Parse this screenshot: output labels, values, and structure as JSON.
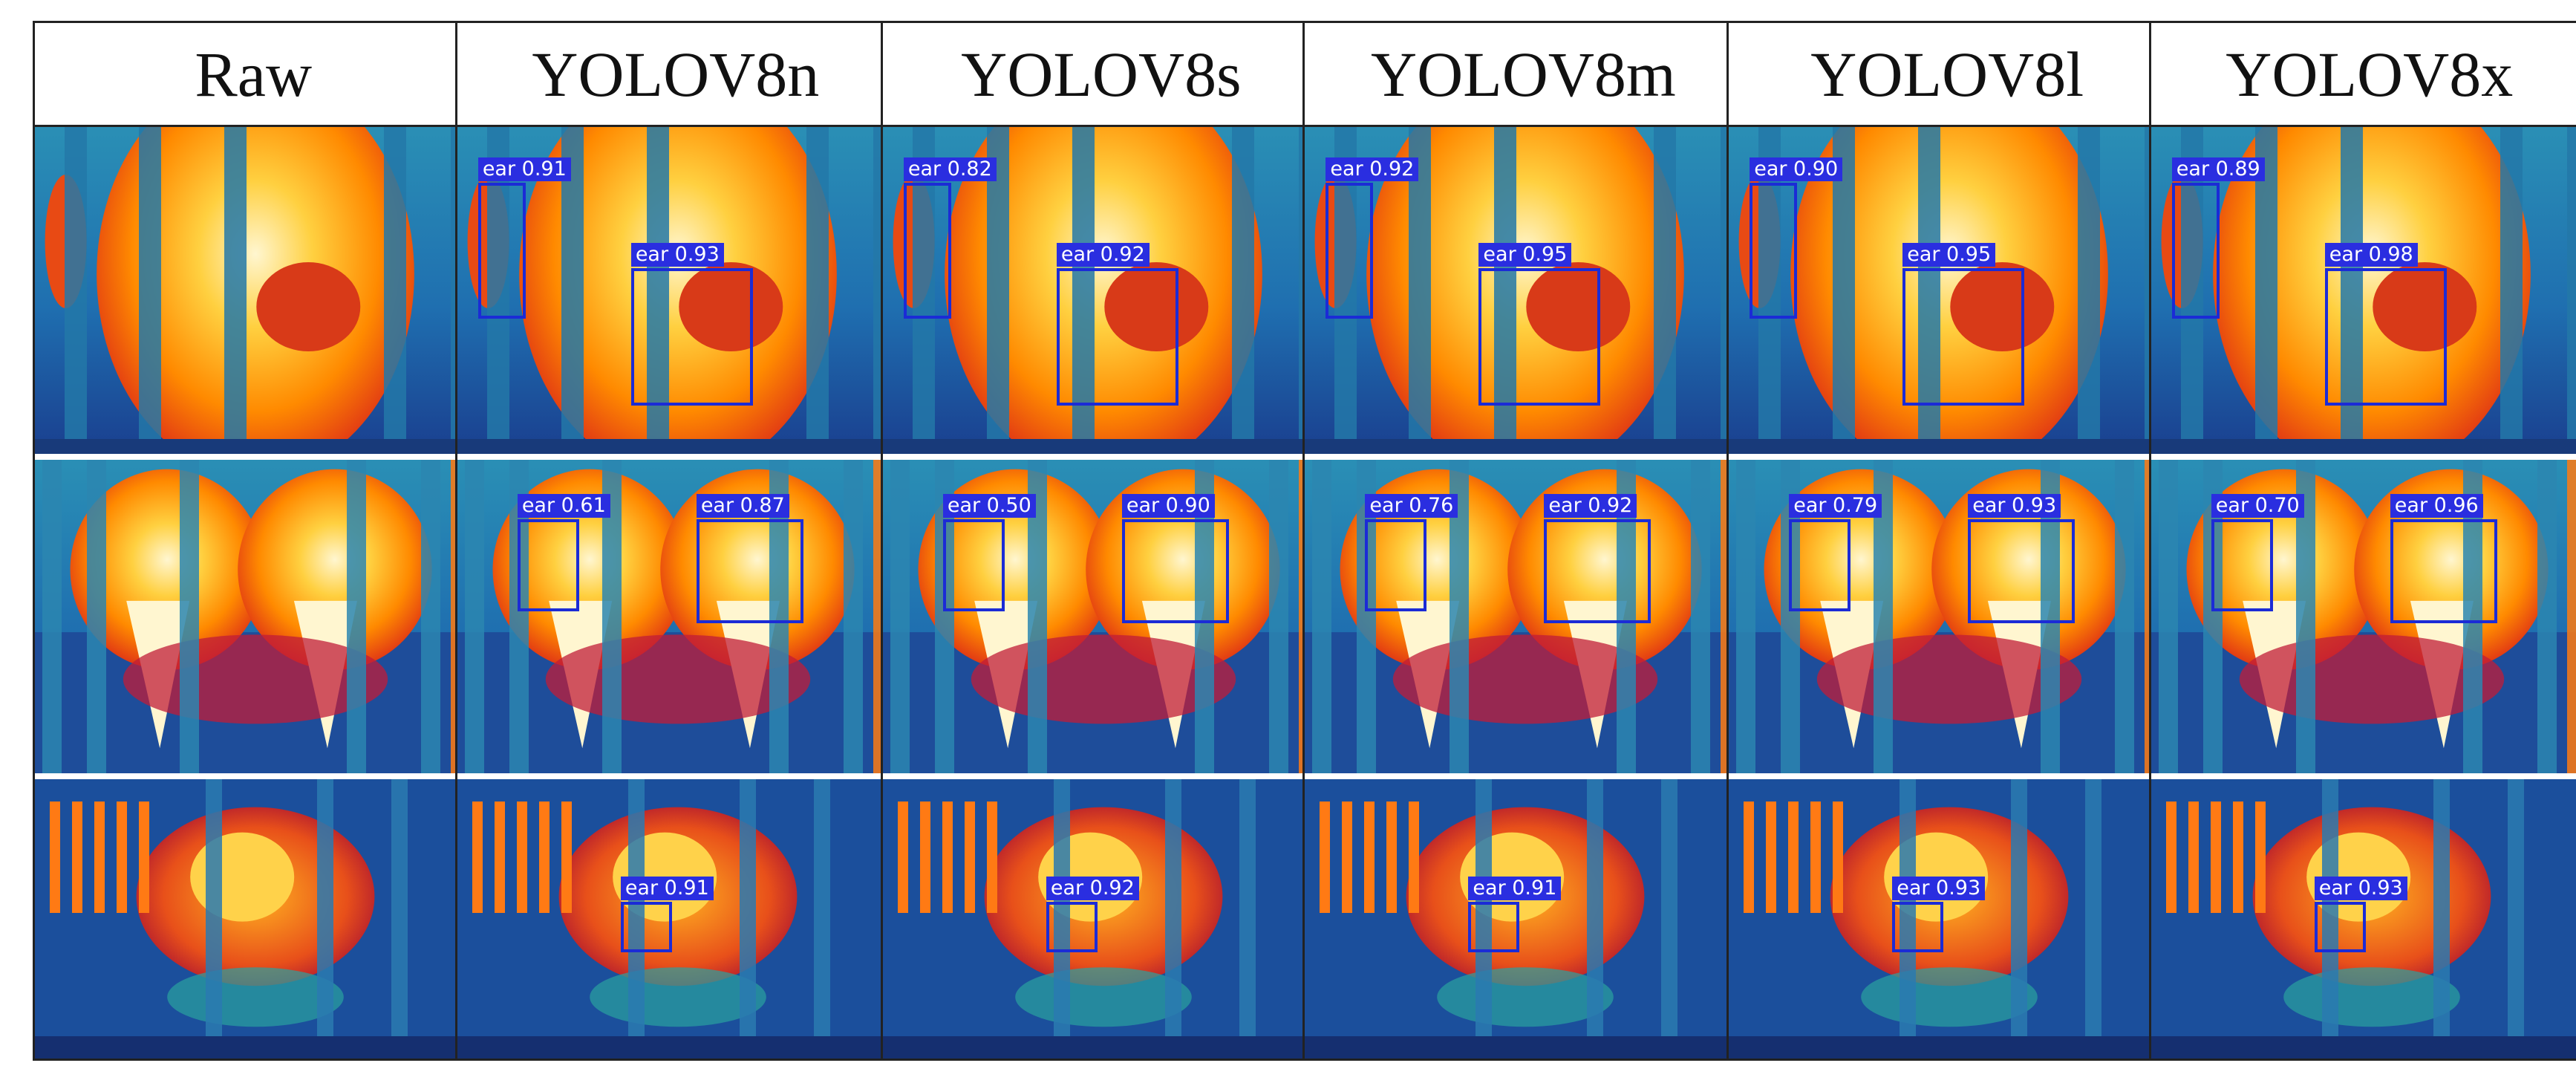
{
  "figure": {
    "columns": [
      {
        "title": "Raw",
        "rows": [
          {
            "detections": []
          },
          {
            "detections": []
          },
          {
            "detections": []
          }
        ]
      },
      {
        "title": "YOLOV8n",
        "rows": [
          {
            "detections": [
              {
                "label": "ear 0.91"
              },
              {
                "label": "ear 0.93"
              }
            ]
          },
          {
            "detections": [
              {
                "label": "ear 0.61"
              },
              {
                "label": "ear 0.87"
              }
            ]
          },
          {
            "detections": [
              {
                "label": "ear 0.91"
              }
            ]
          }
        ]
      },
      {
        "title": "YOLOV8s",
        "rows": [
          {
            "detections": [
              {
                "label": "ear 0.82"
              },
              {
                "label": "ear 0.92"
              }
            ]
          },
          {
            "detections": [
              {
                "label": "ear 0.50"
              },
              {
                "label": "ear 0.90"
              }
            ]
          },
          {
            "detections": [
              {
                "label": "ear 0.92"
              }
            ]
          }
        ]
      },
      {
        "title": "YOLOV8m",
        "rows": [
          {
            "detections": [
              {
                "label": "ear 0.92"
              },
              {
                "label": "ear 0.95"
              }
            ]
          },
          {
            "detections": [
              {
                "label": "ear 0.76"
              },
              {
                "label": "ear 0.92"
              }
            ]
          },
          {
            "detections": [
              {
                "label": "ear 0.91"
              }
            ]
          }
        ]
      },
      {
        "title": "YOLOV8l",
        "rows": [
          {
            "detections": [
              {
                "label": "ear 0.90"
              },
              {
                "label": "ear 0.95"
              }
            ]
          },
          {
            "detections": [
              {
                "label": "ear 0.79"
              },
              {
                "label": "ear 0.93"
              }
            ]
          },
          {
            "detections": [
              {
                "label": "ear 0.93"
              }
            ]
          }
        ]
      },
      {
        "title": "YOLOV8x",
        "rows": [
          {
            "detections": [
              {
                "label": "ear 0.89"
              },
              {
                "label": "ear 0.98"
              }
            ]
          },
          {
            "detections": [
              {
                "label": "ear 0.70"
              },
              {
                "label": "ear 0.96"
              }
            ]
          },
          {
            "detections": [
              {
                "label": "ear 0.93"
              }
            ]
          }
        ]
      }
    ],
    "colors": {
      "box": "#1b2bd6",
      "label_bg": "#2a2ee0",
      "background_cold": "#1f6fb0",
      "animal_hot": "#ff8a00",
      "animal_hottest": "#fff6d0"
    }
  }
}
